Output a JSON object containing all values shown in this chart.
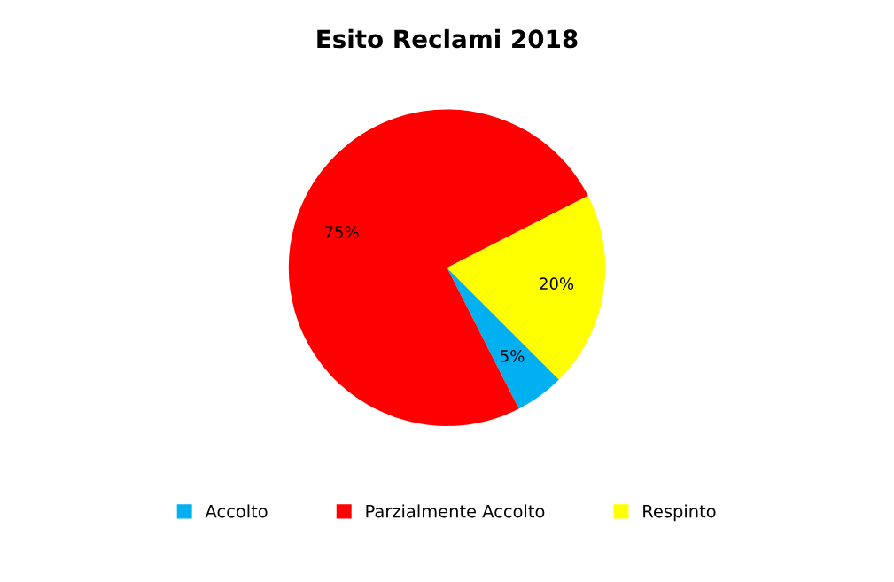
{
  "chart_data": {
    "type": "pie",
    "title": "Esito Reclami 2018",
    "categories": [
      "Accolto",
      "Parzialmente Accolto",
      "Respinto"
    ],
    "values": [
      5,
      75,
      20
    ],
    "colors": [
      "#00b0f0",
      "#ff0000",
      "#ffff00"
    ],
    "value_labels": [
      "5%",
      "75%",
      "20%"
    ],
    "legend": "bottom"
  }
}
